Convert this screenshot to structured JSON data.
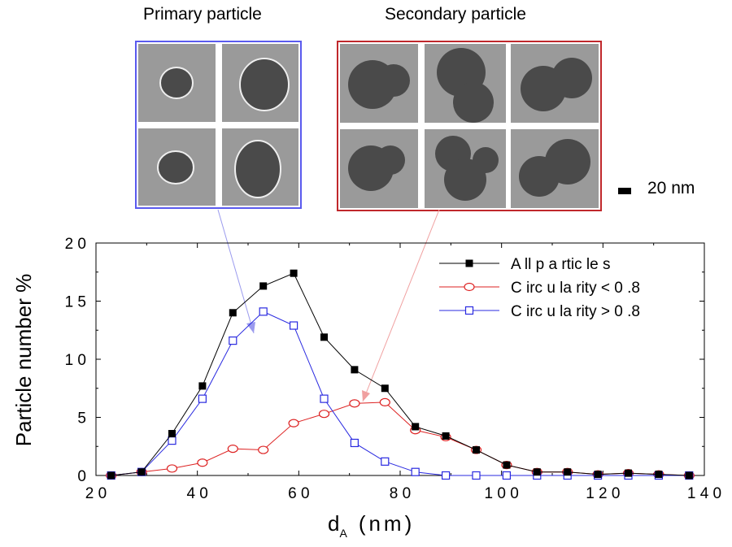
{
  "panels": {
    "primary_title": "Primary particle",
    "secondary_title": "Secondary particle",
    "scale_label": "20 nm"
  },
  "colors": {
    "primary_frame": "#5a5aee",
    "secondary_frame": "#c0282c",
    "tem_background": "#9a9a9a",
    "particle": "#4a4a4a"
  },
  "chart_data": {
    "type": "line",
    "xlabel": "d",
    "xlabel_sub": "A",
    "xlabel_unit": "(nm)",
    "ylabel": "Particle number %",
    "xlim": [
      20,
      140
    ],
    "ylim": [
      0,
      20
    ],
    "xticks": [
      20,
      40,
      60,
      80,
      100,
      120,
      140
    ],
    "yticks": [
      0,
      5,
      10,
      15,
      20
    ],
    "ytick_labels": [
      "0",
      "5",
      "1 0",
      "1 5",
      "2 0"
    ],
    "xtick_labels": [
      "2 0",
      "4 0",
      "6 0",
      "8 0",
      "1 0 0",
      "1 2 0",
      "1 4 0"
    ],
    "grid": false,
    "legend_position": "top-right",
    "series": [
      {
        "name": "All particles",
        "color": "#000000",
        "marker": "filled-square",
        "x": [
          23,
          29,
          35,
          41,
          47,
          53,
          59,
          65,
          71,
          77,
          83,
          89,
          95,
          101,
          107,
          113,
          119,
          125,
          131,
          137
        ],
        "y": [
          0.0,
          0.3,
          3.6,
          7.7,
          14.0,
          16.3,
          17.4,
          11.9,
          9.1,
          7.5,
          4.2,
          3.4,
          2.2,
          0.9,
          0.3,
          0.3,
          0.1,
          0.2,
          0.1,
          0.0
        ]
      },
      {
        "name": "Circularity < 0.8",
        "color": "#dd2222",
        "marker": "open-circle",
        "x": [
          23,
          29,
          35,
          41,
          47,
          53,
          59,
          65,
          71,
          77,
          83,
          89,
          95,
          101,
          107,
          113,
          119,
          125,
          131,
          137
        ],
        "y": [
          0.0,
          0.3,
          0.6,
          1.1,
          2.3,
          2.2,
          4.5,
          5.3,
          6.2,
          6.3,
          3.9,
          3.3,
          2.2,
          0.9,
          0.3,
          0.3,
          0.1,
          0.2,
          0.1,
          0.0
        ]
      },
      {
        "name": "Circularity > 0.8",
        "color": "#2a2ae0",
        "marker": "open-square",
        "x": [
          23,
          29,
          35,
          41,
          47,
          53,
          59,
          65,
          71,
          77,
          83,
          89,
          95,
          101,
          107,
          113,
          119,
          125,
          131,
          137
        ],
        "y": [
          0.0,
          0.3,
          3.0,
          6.6,
          11.6,
          14.1,
          12.9,
          6.6,
          2.8,
          1.2,
          0.3,
          0.0,
          0.0,
          0.0,
          0.0,
          0.0,
          0.0,
          0.0,
          0.0,
          0.0
        ]
      }
    ],
    "legend": [
      "All particles",
      "Circularity < 0.8",
      "Circularity > 0.8"
    ],
    "legend_text": [
      "A ll p a rtic le s",
      "C irc u la rity  <  0 .8",
      "C irc u la rity  >  0 .8"
    ]
  }
}
